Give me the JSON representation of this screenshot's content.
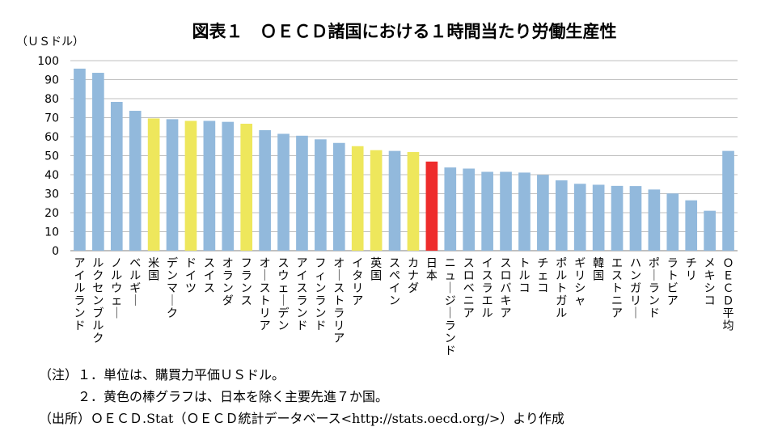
{
  "chart_data": {
    "type": "bar",
    "title": "図表１　ＯＥＣＤ諸国における１時間当たり労働生産性",
    "ylabel": "（ＵＳドル）",
    "xlabel": "",
    "ylim": [
      0,
      100
    ],
    "yticks": [
      0,
      10,
      20,
      30,
      40,
      50,
      60,
      70,
      80,
      90,
      100
    ],
    "grid": true,
    "legend": "none",
    "categories": [
      "アイルランド",
      "ルクセンブルク",
      "ノルウェー",
      "ベルギー",
      "米国",
      "デンマーク",
      "ドイツ",
      "スイス",
      "オランダ",
      "フランス",
      "オーストリア",
      "スウェーデン",
      "アイスランド",
      "フィンランド",
      "オーストラリア",
      "イタリア",
      "英国",
      "スペイン",
      "カナダ",
      "日本",
      "ニュージーランド",
      "スロベニア",
      "イスラエル",
      "スロバキア",
      "トルコ",
      "チェコ",
      "ポルトガル",
      "ギリシャ",
      "韓国",
      "エストニア",
      "ハンガリー",
      "ポーランド",
      "ラトビア",
      "チリ",
      "メキシコ",
      "ＯＥＣＤ平均"
    ],
    "values": [
      95.8,
      93.6,
      78.3,
      73.6,
      69.6,
      69.2,
      68.3,
      68.3,
      67.8,
      66.8,
      63.4,
      61.5,
      60.5,
      58.6,
      56.7,
      55.0,
      52.9,
      52.5,
      51.9,
      46.9,
      43.8,
      43.2,
      41.5,
      41.5,
      41.1,
      39.9,
      37.0,
      35.2,
      34.7,
      34.1,
      34.0,
      32.2,
      30.1,
      26.5,
      21.0,
      52.5
    ],
    "bar_kind": [
      "other",
      "other",
      "other",
      "other",
      "g7",
      "other",
      "g7",
      "other",
      "other",
      "g7",
      "other",
      "other",
      "other",
      "other",
      "other",
      "g7",
      "g7",
      "other",
      "g7",
      "japan",
      "other",
      "other",
      "other",
      "other",
      "other",
      "other",
      "other",
      "other",
      "other",
      "other",
      "other",
      "other",
      "other",
      "other",
      "other",
      "other"
    ]
  },
  "colors": {
    "other": "#92B9DC",
    "g7": "#EEE75C",
    "japan": "#EE2C2C",
    "grid": "#BFBFBF"
  },
  "notes": {
    "note1": "（注）１．単位は、購買力平価ＵＳドル。",
    "note2": "２．黄色の棒グラフは、日本を除く主要先進７か国。",
    "source": "（出所）ＯＥＣＤ.Stat（ＯＥＣＤ統計データベース<http://stats.oecd.org/>）より作成"
  }
}
